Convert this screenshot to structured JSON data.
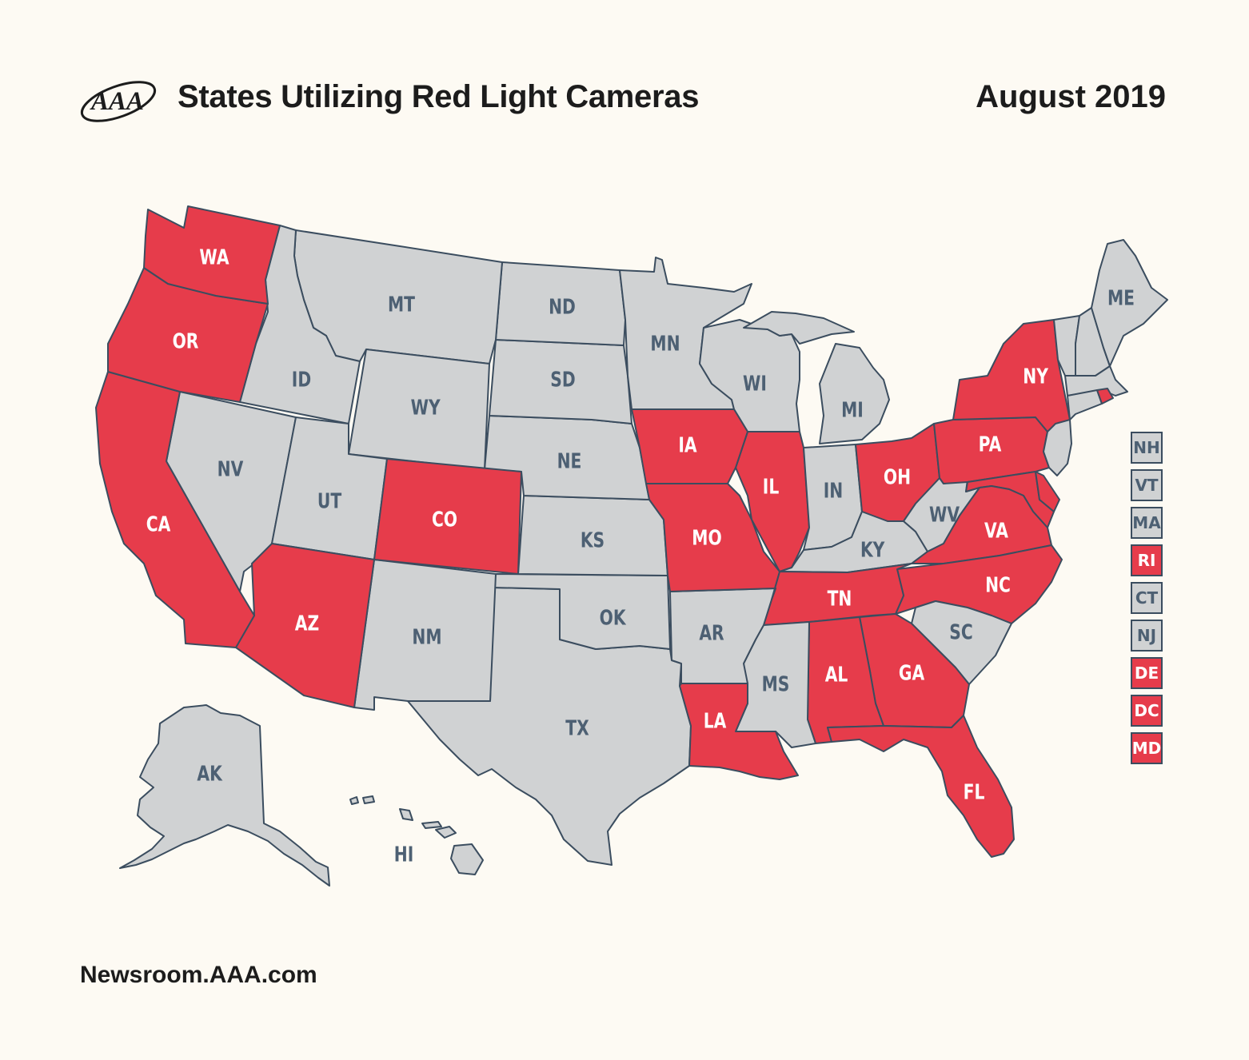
{
  "header": {
    "logo_text": "AAA",
    "title": "States Utilizing Red Light Cameras",
    "date": "August 2019"
  },
  "footer": {
    "source": "Newsroom.AAA.com"
  },
  "colors": {
    "uses_cameras": "#e63c4b",
    "no_cameras": "#d0d2d3",
    "border": "#3b4d5f",
    "label_on": "#ffffff",
    "label_off": "#4d6073",
    "background": "#fdfaf3"
  },
  "map": {
    "states": [
      {
        "code": "WA",
        "red_light_cameras": true
      },
      {
        "code": "OR",
        "red_light_cameras": true
      },
      {
        "code": "CA",
        "red_light_cameras": true
      },
      {
        "code": "NV",
        "red_light_cameras": false
      },
      {
        "code": "ID",
        "red_light_cameras": false
      },
      {
        "code": "MT",
        "red_light_cameras": false
      },
      {
        "code": "WY",
        "red_light_cameras": false
      },
      {
        "code": "UT",
        "red_light_cameras": false
      },
      {
        "code": "AZ",
        "red_light_cameras": true
      },
      {
        "code": "CO",
        "red_light_cameras": true
      },
      {
        "code": "NM",
        "red_light_cameras": false
      },
      {
        "code": "ND",
        "red_light_cameras": false
      },
      {
        "code": "SD",
        "red_light_cameras": false
      },
      {
        "code": "NE",
        "red_light_cameras": false
      },
      {
        "code": "KS",
        "red_light_cameras": false
      },
      {
        "code": "OK",
        "red_light_cameras": false
      },
      {
        "code": "TX",
        "red_light_cameras": false
      },
      {
        "code": "MN",
        "red_light_cameras": false
      },
      {
        "code": "IA",
        "red_light_cameras": true
      },
      {
        "code": "MO",
        "red_light_cameras": true
      },
      {
        "code": "AR",
        "red_light_cameras": false
      },
      {
        "code": "LA",
        "red_light_cameras": true
      },
      {
        "code": "WI",
        "red_light_cameras": false
      },
      {
        "code": "IL",
        "red_light_cameras": true
      },
      {
        "code": "MI",
        "red_light_cameras": false
      },
      {
        "code": "IN",
        "red_light_cameras": false
      },
      {
        "code": "OH",
        "red_light_cameras": true
      },
      {
        "code": "KY",
        "red_light_cameras": false
      },
      {
        "code": "TN",
        "red_light_cameras": true
      },
      {
        "code": "MS",
        "red_light_cameras": false
      },
      {
        "code": "AL",
        "red_light_cameras": true
      },
      {
        "code": "GA",
        "red_light_cameras": true
      },
      {
        "code": "FL",
        "red_light_cameras": true
      },
      {
        "code": "SC",
        "red_light_cameras": false
      },
      {
        "code": "NC",
        "red_light_cameras": true
      },
      {
        "code": "VA",
        "red_light_cameras": true
      },
      {
        "code": "WV",
        "red_light_cameras": false
      },
      {
        "code": "PA",
        "red_light_cameras": true
      },
      {
        "code": "NY",
        "red_light_cameras": true
      },
      {
        "code": "ME",
        "red_light_cameras": false
      },
      {
        "code": "AK",
        "red_light_cameras": false
      },
      {
        "code": "HI",
        "red_light_cameras": false
      }
    ],
    "small_states": [
      {
        "code": "NH",
        "red_light_cameras": false
      },
      {
        "code": "VT",
        "red_light_cameras": false
      },
      {
        "code": "MA",
        "red_light_cameras": false
      },
      {
        "code": "RI",
        "red_light_cameras": true
      },
      {
        "code": "CT",
        "red_light_cameras": false
      },
      {
        "code": "NJ",
        "red_light_cameras": false
      },
      {
        "code": "DE",
        "red_light_cameras": true
      },
      {
        "code": "DC",
        "red_light_cameras": true
      },
      {
        "code": "MD",
        "red_light_cameras": true
      }
    ]
  }
}
